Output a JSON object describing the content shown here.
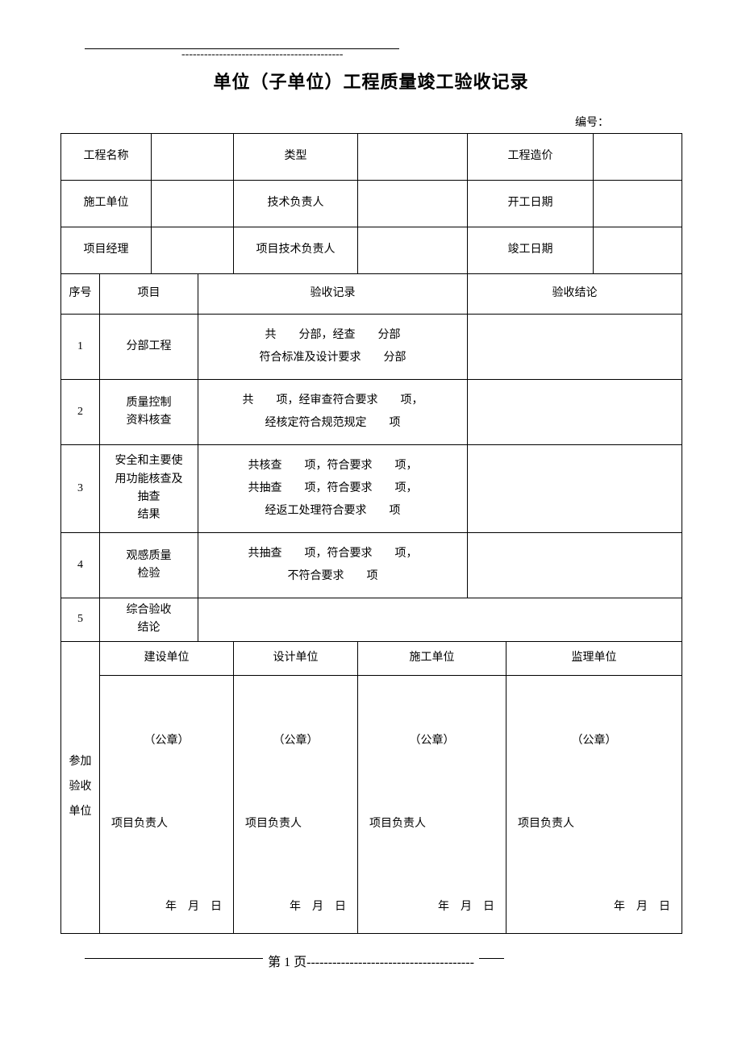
{
  "header": {
    "title": "单位（子单位）工程质量竣工验收记录",
    "serial_label": "编号：",
    "top_dashes": "-------------------------------------------"
  },
  "info": {
    "project_name_label": "工程名称",
    "type_label": "类型",
    "cost_label": "工程造价",
    "contractor_label": "施工单位",
    "tech_lead_label": "技术负责人",
    "start_date_label": "开工日期",
    "pm_label": "项目经理",
    "proj_tech_lead_label": "项目技术负责人",
    "end_date_label": "竣工日期"
  },
  "columns": {
    "seq": "序号",
    "item": "项目",
    "record": "验收记录",
    "result": "验收结论"
  },
  "rows": [
    {
      "seq": "1",
      "item": "分部工程",
      "record": "共　　分部，经查　　分部\n符合标准及设计要求　　分部"
    },
    {
      "seq": "2",
      "item": "质量控制\n资料核查",
      "record": "共　　项，经审查符合要求　　项，\n经核定符合规范规定　　项"
    },
    {
      "seq": "3",
      "item": "安全和主要使\n用功能核查及\n抽查\n结果",
      "record": "共核查　　项，符合要求　　项，\n共抽查　　项，符合要求　　项，\n经返工处理符合要求　　项"
    },
    {
      "seq": "4",
      "item": "观感质量\n检验",
      "record": "共抽查　　项，符合要求　　项，\n不符合要求　　项"
    },
    {
      "seq": "5",
      "item": "综合验收\n结论",
      "record": ""
    }
  ],
  "sig": {
    "side_label": "参加\n验收\n单位",
    "cols": [
      "建设单位",
      "设计单位",
      "施工单位",
      "监理单位"
    ],
    "seal": "（公章）",
    "pm": "项目负责人",
    "date": "年　月　日"
  },
  "footer": {
    "page": "第 1 页",
    "dashes": "---------------------------------------"
  },
  "style": {
    "border_color": "#000000",
    "background": "#ffffff",
    "font": "SimSun",
    "title_fontsize_pt": 16,
    "body_fontsize_pt": 10.5
  }
}
